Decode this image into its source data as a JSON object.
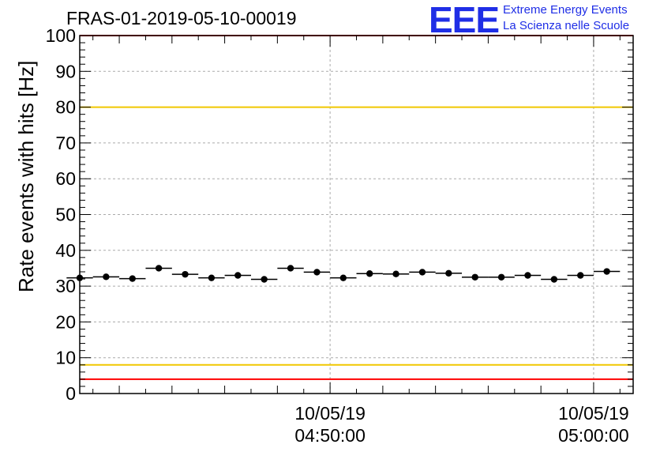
{
  "title": "FRAS-01-2019-05-10-00019",
  "logo": {
    "mark": "EEE",
    "line1": "Extreme Energy Events",
    "line2": "La Scienza nelle Scuole"
  },
  "colors": {
    "limit_red": "#ff0000",
    "limit_yellow": "#f0c800",
    "grid": "#aaaaaa",
    "marker": "#000000",
    "logo_blue": "#1f2ee6"
  },
  "chart_data": {
    "type": "scatter",
    "title": "FRAS-01-2019-05-10-00019",
    "ylabel": "Rate events with hits [Hz]",
    "xlabel": "",
    "ylim": [
      0,
      100
    ],
    "yticks": [
      "0",
      "10",
      "20",
      "30",
      "40",
      "50",
      "60",
      "70",
      "80",
      "90",
      "100"
    ],
    "x_range": [
      "04:40:30",
      "05:01:30"
    ],
    "xtick_labels": [
      {
        "time": "04:50:00",
        "date": "10/05/19",
        "time_label": "04:50:00"
      },
      {
        "time": "05:00:00",
        "date": "10/05/19",
        "time_label": "05:00:00"
      }
    ],
    "bin_width_min": 1,
    "grid": true,
    "reference_lines": [
      {
        "y": 100,
        "color": "red"
      },
      {
        "y": 80,
        "color": "yellow"
      },
      {
        "y": 8,
        "color": "yellow"
      },
      {
        "y": 4,
        "color": "red"
      }
    ],
    "series": [
      {
        "x": [
          "04:40:30",
          "04:41:30",
          "04:42:30",
          "04:43:30",
          "04:44:30",
          "04:45:30",
          "04:46:30",
          "04:47:30",
          "04:48:30",
          "04:49:30",
          "04:50:30",
          "04:51:30",
          "04:52:30",
          "04:53:30",
          "04:54:30",
          "04:55:30",
          "04:56:30",
          "04:57:30",
          "04:58:30",
          "04:59:30",
          "05:00:30"
        ],
        "y": [
          32.3,
          32.6,
          32.1,
          35.0,
          33.3,
          32.3,
          33.0,
          31.9,
          35.0,
          33.9,
          32.3,
          33.5,
          33.4,
          33.9,
          33.6,
          32.5,
          32.5,
          33.0,
          31.9,
          33.0,
          34.1
        ]
      }
    ]
  }
}
